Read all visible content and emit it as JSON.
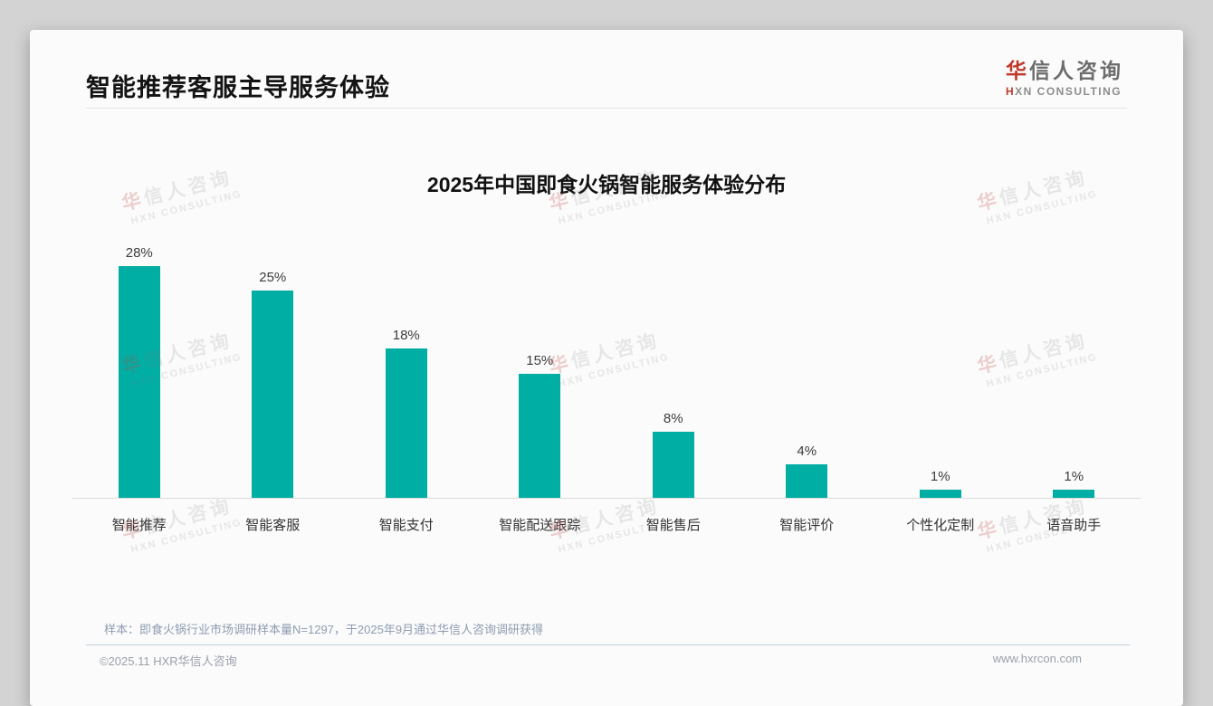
{
  "page": {
    "title": "智能推荐客服主导服务体验"
  },
  "brand": {
    "cn_first": "华",
    "cn_rest": "信人咨询",
    "en_first": "H",
    "en_rest": "XN CONSULTING"
  },
  "watermark": {
    "cn_first": "华",
    "cn_rest": "信人咨询",
    "en": "HXN CONSULTING"
  },
  "chart_data": {
    "type": "bar",
    "title": "2025年中国即食火锅智能服务体验分布",
    "categories": [
      "智能推荐",
      "智能客服",
      "智能支付",
      "智能配送跟踪",
      "智能售后",
      "智能评价",
      "个性化定制",
      "语音助手"
    ],
    "values": [
      28,
      25,
      18,
      15,
      8,
      4,
      1,
      1
    ],
    "value_labels": [
      "28%",
      "25%",
      "18%",
      "15%",
      "8%",
      "4%",
      "1%",
      "1%"
    ],
    "bar_color": "#00aea4",
    "xlabel": "",
    "ylabel": "",
    "ylim": [
      0,
      30
    ],
    "grid": false,
    "legend": false
  },
  "footnote": {
    "sample_note": "样本：即食火锅行业市场调研样本量N=1297，于2025年9月通过华信人咨询调研获得",
    "copyright": "©2025.11 HXR华信人咨询",
    "website": "www.hxrcon.com"
  }
}
